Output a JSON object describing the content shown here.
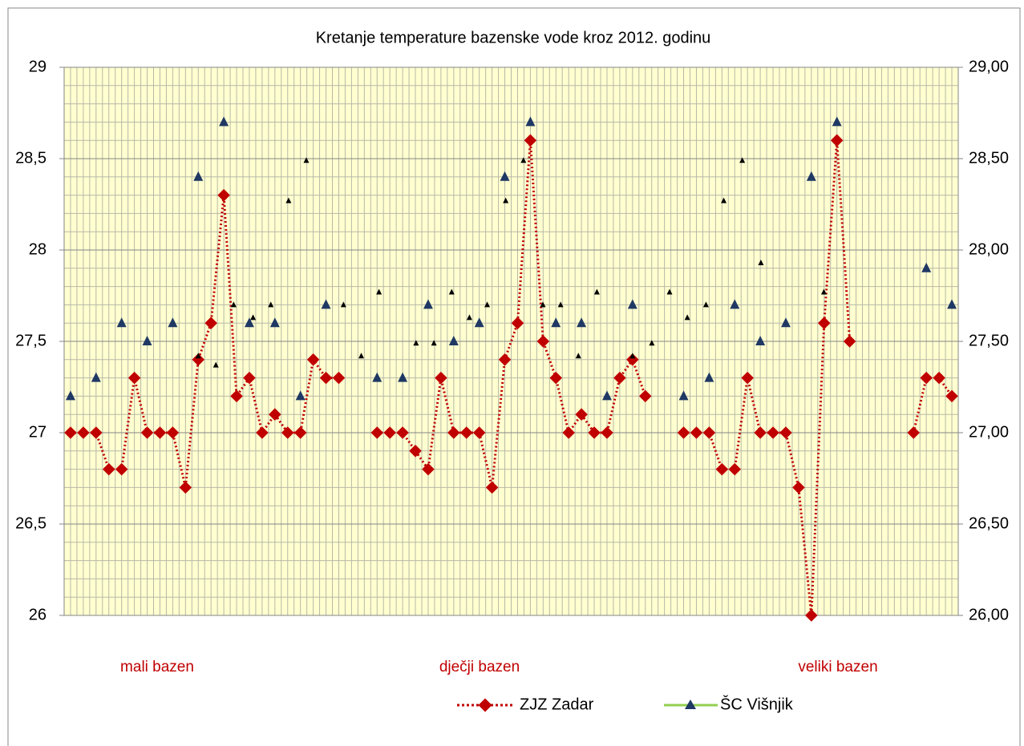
{
  "chart_data": {
    "type": "line",
    "title": "Kretanje temperature bazenske vode kroz  2012. godinu",
    "annotations": [
      "mali bazen",
      "dječji bazen",
      "veliki bazen"
    ],
    "ylim": [
      26,
      29
    ],
    "yticks": [
      26,
      {
        "value": 26.5,
        "label": "26,5"
      },
      27,
      {
        "value": 27.5,
        "label": "27,5"
      },
      28,
      {
        "value": 28.5,
        "label": "28,5"
      },
      29
    ],
    "y2lim": [
      26,
      29
    ],
    "y2ticks": [
      {
        "value": 26,
        "label": "26,00"
      },
      {
        "value": 26.5,
        "label": "26,50"
      },
      {
        "value": 27,
        "label": "27,00"
      },
      {
        "value": 27.5,
        "label": "27,50"
      },
      {
        "value": 28,
        "label": "28,00"
      },
      {
        "value": 28.5,
        "label": "28,50"
      },
      {
        "value": 29,
        "label": "29,00"
      }
    ],
    "grid": true,
    "legend": "bottom",
    "series": [
      {
        "name": "ZJZ Zadar",
        "color": "#c00000",
        "values": [
          27.0,
          27.0,
          27.0,
          26.8,
          26.8,
          27.3,
          27.0,
          27.0,
          27.0,
          26.7,
          27.4,
          27.6,
          28.3,
          27.2,
          27.3,
          27.0,
          27.1,
          27.0,
          27.0,
          27.4,
          27.3,
          27.3,
          null,
          null,
          27.0,
          27.0,
          27.0,
          26.9,
          26.8,
          27.3,
          27.0,
          27.0,
          27.0,
          26.7,
          27.4,
          27.6,
          28.6,
          27.5,
          27.3,
          27.0,
          27.1,
          27.0,
          27.0,
          27.3,
          27.4,
          27.2,
          null,
          null,
          27.0,
          27.0,
          27.0,
          26.8,
          26.8,
          27.3,
          27.0,
          27.0,
          27.0,
          26.7,
          26.0,
          27.6,
          28.6,
          27.5,
          null,
          null,
          null,
          null,
          27.0,
          27.3,
          27.3,
          27.2
        ]
      },
      {
        "name": "ŠC Višnjik",
        "color": "#1f3864",
        "values": [
          27.2,
          null,
          27.3,
          null,
          27.6,
          null,
          27.5,
          null,
          27.6,
          null,
          28.4,
          null,
          28.7,
          null,
          27.6,
          null,
          27.6,
          null,
          27.2,
          null,
          27.7,
          null,
          null,
          null,
          27.3,
          null,
          27.3,
          null,
          27.7,
          null,
          27.5,
          null,
          27.6,
          null,
          28.4,
          null,
          28.7,
          null,
          27.6,
          null,
          27.6,
          null,
          27.2,
          null,
          27.7,
          null,
          null,
          null,
          27.2,
          null,
          27.3,
          null,
          27.7,
          null,
          27.5,
          null,
          27.6,
          null,
          28.4,
          null,
          28.7,
          null,
          null,
          null,
          null,
          null,
          null,
          27.9,
          null,
          27.7
        ]
      },
      {
        "color": "#000000",
        "x": [
          10.0,
          11.38,
          12.77,
          14.29,
          15.68,
          17.07,
          18.46,
          21.37,
          22.76,
          24.15,
          27.05,
          28.45,
          29.84,
          31.23,
          32.62,
          34.07,
          35.46,
          36.98,
          38.37,
          39.76,
          41.21,
          44.0,
          45.51,
          46.9,
          48.29,
          49.75,
          51.14,
          52.59,
          54.05,
          58.98
        ],
        "values": [
          27.42,
          27.37,
          27.7,
          27.63,
          27.7,
          28.27,
          28.49,
          27.7,
          27.42,
          27.77,
          27.49,
          27.49,
          27.77,
          27.63,
          27.7,
          28.27,
          28.49,
          27.7,
          27.7,
          27.42,
          27.77,
          27.42,
          27.49,
          27.77,
          27.63,
          27.7,
          28.27,
          28.49,
          27.93,
          27.77
        ]
      }
    ]
  }
}
